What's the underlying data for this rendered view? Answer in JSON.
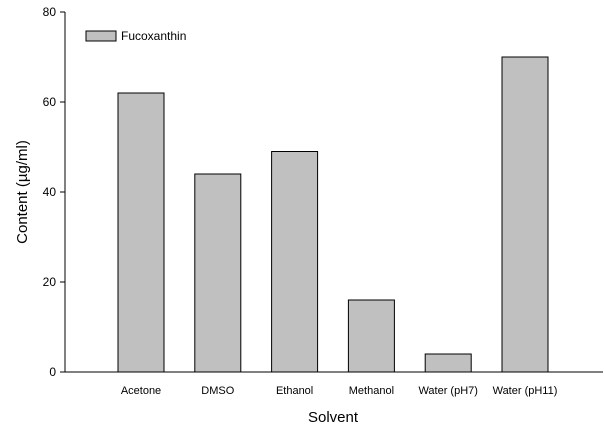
{
  "chart_data": {
    "type": "bar",
    "xlabel": "Solvent",
    "ylabel": "Content (µg/ml)",
    "categories": [
      "Acetone",
      "DMSO",
      "Ethanol",
      "Methanol",
      "Water (pH7)",
      "Water (pH11)"
    ],
    "series": [
      {
        "name": "Fucoxanthin",
        "values": [
          62,
          44,
          49,
          16,
          4,
          70
        ]
      }
    ],
    "ylim": [
      0,
      80
    ],
    "yticks": [
      0,
      20,
      40,
      60,
      80
    ],
    "grid": false,
    "legend_position": "top-left",
    "colors": {
      "bar_fill": "#c0c0c0",
      "bar_stroke": "#000000",
      "axis": "#000000"
    }
  }
}
